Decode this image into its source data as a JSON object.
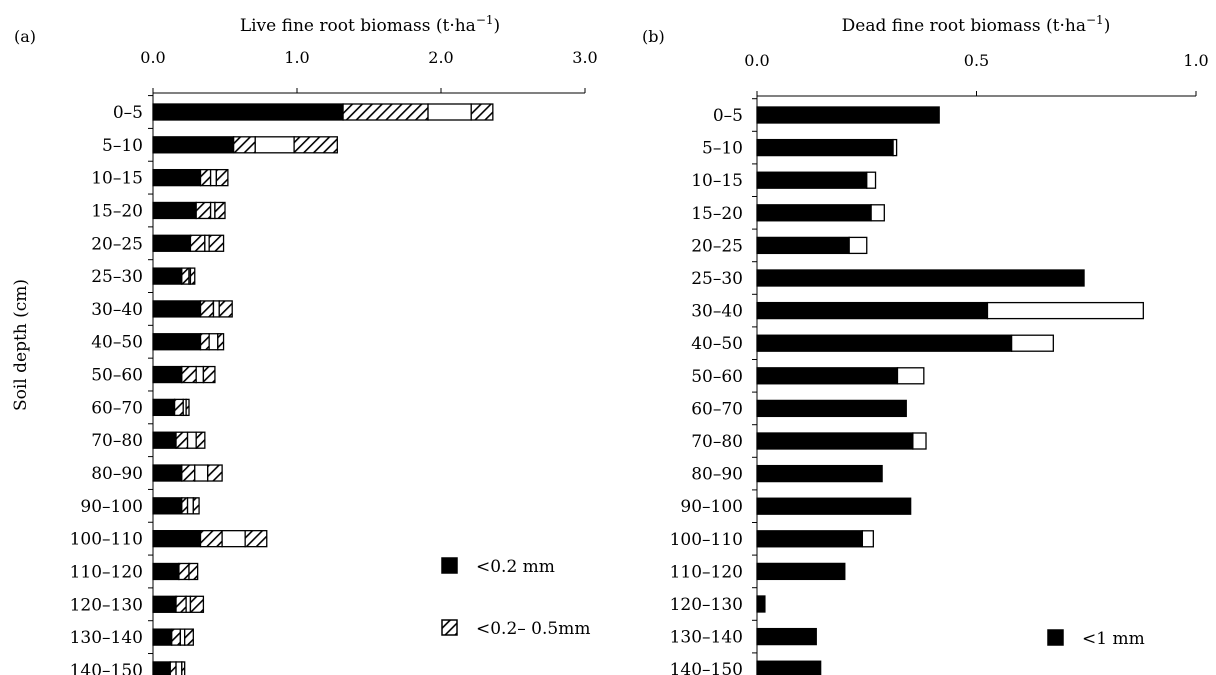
{
  "y_axis_title": "Soil depth (cm)",
  "categories": [
    "0–5",
    "5–10",
    "10–15",
    "15–20",
    "20–25",
    "25–30",
    "30–40",
    "40–50",
    "50–60",
    "60–70",
    "70–80",
    "80–90",
    "90–100",
    "100–110",
    "110–120",
    "120–130",
    "130–140",
    "140–150"
  ],
  "chart_data": [
    {
      "type": "bar",
      "orientation": "horizontal",
      "stacked": true,
      "panel_label": "(a)",
      "title": "Live fine root biomass (t·ha−1)",
      "xlabel": "Live fine root biomass (t·ha−1)",
      "ylabel": "Soil depth (cm)",
      "xlim": [
        0,
        3.0
      ],
      "x_ticks": [
        "0.0",
        "1.0",
        "2.0",
        "3.0"
      ],
      "x_axis_position": "top",
      "categories": [
        "0–5",
        "5–10",
        "10–15",
        "15–20",
        "20–25",
        "25–30",
        "30–40",
        "40–50",
        "50–60",
        "60–70",
        "70–80",
        "80–90",
        "90–100",
        "100–110",
        "110–120",
        "120–130",
        "130–140",
        "140–150"
      ],
      "series": [
        {
          "name": "<0.2 mm",
          "pattern": "solid",
          "values": [
            1.32,
            0.56,
            0.33,
            0.3,
            0.26,
            0.2,
            0.33,
            0.33,
            0.2,
            0.15,
            0.16,
            0.2,
            0.2,
            0.33,
            0.18,
            0.16,
            0.13,
            0.12
          ]
        },
        {
          "name": "<0.2– 0.5mm",
          "pattern": "hatch",
          "values": [
            0.59,
            0.15,
            0.07,
            0.1,
            0.1,
            0.05,
            0.09,
            0.06,
            0.1,
            0.06,
            0.08,
            0.09,
            0.04,
            0.15,
            0.07,
            0.07,
            0.06,
            0.04
          ]
        },
        {
          "name": "",
          "pattern": "open",
          "values": [
            0.3,
            0.27,
            0.04,
            0.03,
            0.03,
            0.01,
            0.04,
            0.06,
            0.05,
            0.02,
            0.06,
            0.09,
            0.04,
            0.16,
            0.0,
            0.03,
            0.03,
            0.04
          ]
        },
        {
          "name": "",
          "pattern": "hatch",
          "values": [
            0.15,
            0.3,
            0.08,
            0.07,
            0.1,
            0.03,
            0.09,
            0.04,
            0.08,
            0.02,
            0.06,
            0.1,
            0.04,
            0.15,
            0.06,
            0.09,
            0.06,
            0.02
          ]
        }
      ],
      "legend": {
        "placement": "bottom-right",
        "entries": [
          {
            "label": "<0.2 mm",
            "swatch": "solid"
          },
          {
            "label": "<0.2– 0.5mm",
            "swatch": "hatch"
          }
        ]
      },
      "grid": false
    },
    {
      "type": "bar",
      "orientation": "horizontal",
      "stacked": true,
      "panel_label": "(b)",
      "title": "Dead fine root biomass (t·ha−1)",
      "xlabel": "Dead fine root biomass (t·ha−1)",
      "ylabel": "",
      "xlim": [
        0,
        1.0
      ],
      "x_ticks": [
        "0.0",
        "0.5",
        "1.0"
      ],
      "x_axis_position": "top",
      "categories": [
        "0–5",
        "5–10",
        "10–15",
        "15–20",
        "20–25",
        "25–30",
        "30–40",
        "40–50",
        "50–60",
        "60–70",
        "70–80",
        "80–90",
        "90–100",
        "100–110",
        "110–120",
        "120–130",
        "130–140",
        "140–150"
      ],
      "series": [
        {
          "name": "<1 mm",
          "pattern": "solid",
          "values": [
            0.415,
            0.31,
            0.25,
            0.26,
            0.21,
            0.745,
            0.525,
            0.58,
            0.32,
            0.34,
            0.355,
            0.285,
            0.35,
            0.24,
            0.2,
            0.018,
            0.135,
            0.145
          ]
        },
        {
          "name": "",
          "pattern": "open",
          "values": [
            0.0,
            0.008,
            0.02,
            0.03,
            0.04,
            0.0,
            0.355,
            0.095,
            0.06,
            0.0,
            0.03,
            0.0,
            0.0,
            0.025,
            0.0,
            0.0,
            0.0,
            0.0
          ]
        }
      ],
      "legend": {
        "placement": "bottom-right",
        "entries": [
          {
            "label": "<1 mm",
            "swatch": "solid"
          }
        ]
      },
      "grid": false
    }
  ]
}
